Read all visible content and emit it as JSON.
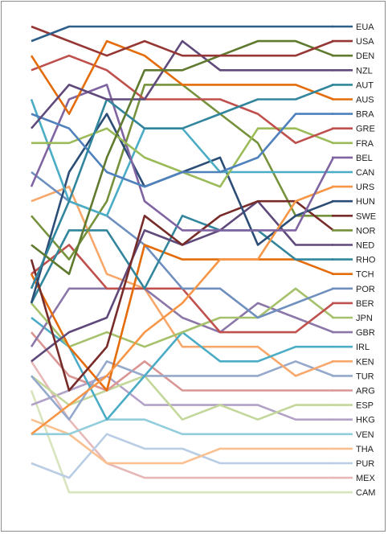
{
  "chart_data": {
    "type": "line",
    "title": "",
    "xlabel": "",
    "ylabel": "",
    "x": [
      1,
      2,
      3,
      4,
      5,
      6,
      7,
      8,
      9
    ],
    "ylim": [
      1,
      33
    ],
    "y_inverted": true,
    "grid": false,
    "legend": "right",
    "series": [
      {
        "name": "EUA",
        "color": "#2e5f8a",
        "values": [
          2,
          1,
          1,
          1,
          1,
          1,
          1,
          1,
          1
        ]
      },
      {
        "name": "USA",
        "color": "#953735",
        "values": [
          1,
          2,
          3,
          2,
          3,
          3,
          3,
          3,
          2
        ]
      },
      {
        "name": "DEN",
        "color": "#5f7a2e",
        "values": [
          16,
          18,
          10,
          4,
          4,
          3,
          2,
          2,
          3
        ]
      },
      {
        "name": "NZL",
        "color": "#604a7b",
        "values": [
          8,
          5,
          6,
          6,
          2,
          4,
          4,
          4,
          4
        ]
      },
      {
        "name": "AUT",
        "color": "#31859c",
        "values": [
          19,
          13,
          6,
          8,
          8,
          7,
          6,
          6,
          5
        ]
      },
      {
        "name": "AUS",
        "color": "#e46c0a",
        "values": [
          3,
          7,
          2,
          3,
          5,
          5,
          5,
          5,
          6
        ]
      },
      {
        "name": "BRA",
        "color": "#4f81bd",
        "values": [
          7,
          8,
          11,
          12,
          11,
          11,
          10,
          7,
          7
        ]
      },
      {
        "name": "GRE",
        "color": "#c0504d",
        "values": [
          4,
          3,
          4,
          6,
          6,
          6,
          7,
          9,
          8
        ]
      },
      {
        "name": "FRA",
        "color": "#9bbb59",
        "values": [
          9,
          9,
          8,
          10,
          11,
          12,
          8,
          8,
          9
        ]
      },
      {
        "name": "BEL",
        "color": "#8064a2",
        "values": [
          12,
          6,
          5,
          13,
          15,
          15,
          15,
          15,
          10
        ]
      },
      {
        "name": "CAN",
        "color": "#4bacc6",
        "values": [
          6,
          13,
          14,
          8,
          8,
          11,
          11,
          11,
          11
        ]
      },
      {
        "name": "URS",
        "color": "#f79646",
        "values": [
          29,
          27,
          25,
          22,
          20,
          17,
          17,
          13,
          12
        ]
      },
      {
        "name": "HUN",
        "color": "#2c4d75",
        "values": [
          20,
          11,
          7,
          12,
          11,
          10,
          16,
          14,
          13
        ]
      },
      {
        "name": "SWE",
        "color": "#772c2a",
        "values": [
          17,
          26,
          23,
          14,
          16,
          14,
          13,
          13,
          15
        ]
      },
      {
        "name": "NOR",
        "color": "#76923c",
        "values": [
          14,
          17,
          13,
          5,
          5,
          7,
          9,
          14,
          14
        ]
      },
      {
        "name": "NED",
        "color": "#5f497a",
        "values": [
          24,
          22,
          21,
          15,
          16,
          15,
          13,
          16,
          16
        ]
      },
      {
        "name": "RHO",
        "color": "#31859c",
        "values": [
          20,
          15,
          15,
          19,
          14,
          15,
          15,
          17,
          17
        ]
      },
      {
        "name": "TCH",
        "color": "#e46c0a",
        "values": [
          18,
          23,
          26,
          16,
          17,
          17,
          17,
          17,
          18
        ]
      },
      {
        "name": "POR",
        "color": "#6f8fbf",
        "values": [
          11,
          13,
          14,
          16,
          19,
          19,
          21,
          20,
          19
        ]
      },
      {
        "name": "BER",
        "color": "#c0504d",
        "values": [
          18,
          16,
          19,
          19,
          19,
          22,
          22,
          22,
          20
        ]
      },
      {
        "name": "JPN",
        "color": "#a5c16b",
        "values": [
          20,
          23,
          22,
          23,
          22,
          21,
          21,
          19,
          21
        ]
      },
      {
        "name": "GBR",
        "color": "#8b76a8",
        "values": [
          23,
          19,
          19,
          19,
          21,
          22,
          20,
          21,
          22
        ]
      },
      {
        "name": "IRL",
        "color": "#4bacc6",
        "values": [
          21,
          23,
          28,
          25,
          22,
          24,
          24,
          23,
          23
        ]
      },
      {
        "name": "KEN",
        "color": "#f8a76b",
        "values": [
          13,
          12,
          18,
          19,
          23,
          23,
          23,
          25,
          24
        ]
      },
      {
        "name": "TUR",
        "color": "#95a9cc",
        "values": [
          25,
          28,
          24,
          25,
          25,
          25,
          25,
          24,
          25
        ]
      },
      {
        "name": "ARG",
        "color": "#d99694",
        "values": [
          22,
          25,
          26,
          24,
          26,
          26,
          26,
          26,
          26
        ]
      },
      {
        "name": "ESP",
        "color": "#c4d79b",
        "values": [
          25,
          27,
          26,
          25,
          28,
          27,
          28,
          27,
          27
        ]
      },
      {
        "name": "HKG",
        "color": "#b3a2c7",
        "values": [
          27,
          26,
          25,
          27,
          27,
          27,
          27,
          28,
          28
        ]
      },
      {
        "name": "VEN",
        "color": "#92cddc",
        "values": [
          29,
          29,
          28,
          28,
          29,
          29,
          29,
          29,
          29
        ]
      },
      {
        "name": "THA",
        "color": "#fac090",
        "values": [
          28,
          29,
          31,
          31,
          31,
          30,
          30,
          30,
          30
        ]
      },
      {
        "name": "PUR",
        "color": "#b9cde5",
        "values": [
          31,
          32,
          29,
          30,
          30,
          31,
          31,
          31,
          31
        ]
      },
      {
        "name": "MEX",
        "color": "#e6b9b8",
        "values": [
          24,
          28,
          31,
          32,
          32,
          32,
          32,
          32,
          32
        ]
      },
      {
        "name": "CAM",
        "color": "#d7e4bd",
        "values": [
          26,
          33,
          33,
          33,
          33,
          33,
          33,
          33,
          33
        ]
      }
    ]
  }
}
